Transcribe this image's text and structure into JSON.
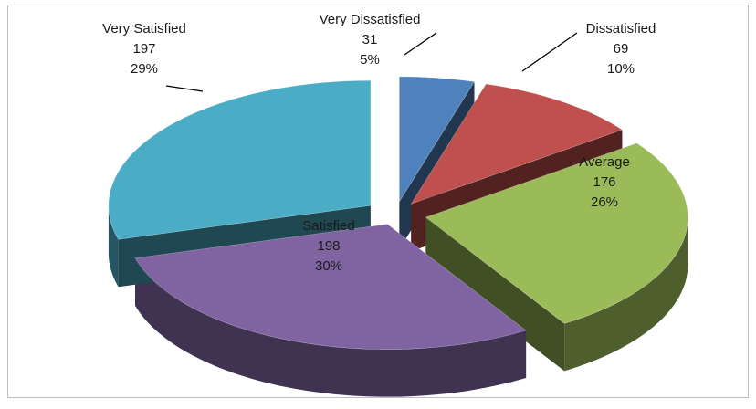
{
  "chart_data": {
    "type": "pie",
    "variant": "3d-exploded",
    "title": "",
    "legend": "none",
    "slices": [
      {
        "label": "Very Dissatisfied",
        "value": 31,
        "percent": "5%",
        "color": "#4f81bd"
      },
      {
        "label": "Dissatisfied",
        "value": 69,
        "percent": "10%",
        "color": "#c0504d"
      },
      {
        "label": "Average",
        "value": 176,
        "percent": "26%",
        "color": "#9bbb59"
      },
      {
        "label": "Satisfied",
        "value": 198,
        "percent": "30%",
        "color": "#8064a2"
      },
      {
        "label": "Very Satisfied",
        "value": 197,
        "percent": "29%",
        "color": "#4bacc6"
      }
    ]
  }
}
